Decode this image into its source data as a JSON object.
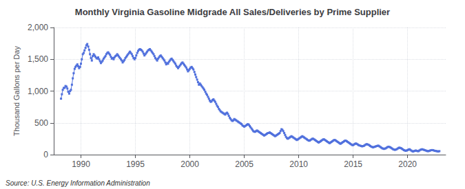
{
  "chart_data": {
    "type": "line",
    "title": "Monthly Virginia Gasoline Midgrade All Sales/Deliveries by Prime Supplier",
    "ylabel": "Thousand Gallons per Day",
    "annotations": [
      "Source: U.S. Energy Information Administration"
    ],
    "marker": "square",
    "grid": true,
    "xlim": [
      1987.5,
      2023.5
    ],
    "xticks": [
      1990,
      1995,
      2000,
      2005,
      2010,
      2015,
      2020
    ],
    "ylim": [
      0,
      2000
    ],
    "yticks": [
      0,
      500,
      {
        "value": 1000,
        "label": "1,000"
      },
      {
        "value": 1500,
        "label": "1,500"
      },
      {
        "value": 2000,
        "label": "2,000"
      }
    ],
    "x": [
      1988.17,
      1988.25,
      1988.33,
      1988.42,
      1988.5,
      1988.58,
      1988.67,
      1988.75,
      1988.83,
      1988.92,
      1989.0,
      1989.08,
      1989.17,
      1989.25,
      1989.33,
      1989.42,
      1989.5,
      1989.58,
      1989.67,
      1989.75,
      1989.83,
      1989.92,
      1990.0,
      1990.08,
      1990.17,
      1990.25,
      1990.33,
      1990.42,
      1990.5,
      1990.58,
      1990.67,
      1990.75,
      1990.83,
      1990.92,
      1991.0,
      1991.08,
      1991.17,
      1991.25,
      1991.33,
      1991.42,
      1991.5,
      1991.58,
      1991.67,
      1991.75,
      1991.83,
      1991.92,
      1992.0,
      1992.08,
      1992.17,
      1992.25,
      1992.33,
      1992.42,
      1992.5,
      1992.58,
      1992.67,
      1992.75,
      1992.83,
      1992.92,
      1993.0,
      1993.08,
      1993.17,
      1993.25,
      1993.33,
      1993.42,
      1993.5,
      1993.58,
      1993.67,
      1993.75,
      1993.83,
      1993.92,
      1994.0,
      1994.08,
      1994.17,
      1994.25,
      1994.33,
      1994.42,
      1994.5,
      1994.58,
      1994.67,
      1994.75,
      1994.83,
      1994.92,
      1995.0,
      1995.08,
      1995.17,
      1995.25,
      1995.33,
      1995.42,
      1995.5,
      1995.58,
      1995.67,
      1995.75,
      1995.83,
      1995.92,
      1996.0,
      1996.08,
      1996.17,
      1996.25,
      1996.33,
      1996.42,
      1996.5,
      1996.58,
      1996.67,
      1996.75,
      1996.83,
      1996.92,
      1997.0,
      1997.08,
      1997.17,
      1997.25,
      1997.33,
      1997.42,
      1997.5,
      1997.58,
      1997.67,
      1997.75,
      1997.83,
      1997.92,
      1998.0,
      1998.08,
      1998.17,
      1998.25,
      1998.33,
      1998.42,
      1998.5,
      1998.58,
      1998.67,
      1998.75,
      1998.83,
      1998.92,
      1999.0,
      1999.08,
      1999.17,
      1999.25,
      1999.33,
      1999.42,
      1999.5,
      1999.58,
      1999.67,
      1999.75,
      1999.83,
      1999.92,
      2000.0,
      2000.08,
      2000.17,
      2000.25,
      2000.33,
      2000.42,
      2000.5,
      2000.58,
      2000.67,
      2000.75,
      2000.83,
      2000.92,
      2001.0,
      2001.08,
      2001.17,
      2001.25,
      2001.33,
      2001.42,
      2001.5,
      2001.58,
      2001.67,
      2001.75,
      2001.83,
      2001.92,
      2002.0,
      2002.08,
      2002.17,
      2002.25,
      2002.33,
      2002.42,
      2002.5,
      2002.58,
      2002.67,
      2002.75,
      2002.83,
      2002.92,
      2003.0,
      2003.08,
      2003.17,
      2003.25,
      2003.33,
      2003.42,
      2003.5,
      2003.58,
      2003.67,
      2003.75,
      2003.83,
      2003.92,
      2004.0,
      2004.08,
      2004.17,
      2004.25,
      2004.33,
      2004.42,
      2004.5,
      2004.58,
      2004.67,
      2004.75,
      2004.83,
      2004.92,
      2005.0,
      2005.08,
      2005.17,
      2005.25,
      2005.33,
      2005.42,
      2005.5,
      2005.58,
      2005.67,
      2005.75,
      2005.83,
      2005.92,
      2006.0,
      2006.08,
      2006.17,
      2006.25,
      2006.33,
      2006.42,
      2006.5,
      2006.58,
      2006.67,
      2006.75,
      2006.83,
      2006.92,
      2007.0,
      2007.08,
      2007.17,
      2007.25,
      2007.33,
      2007.42,
      2007.5,
      2007.58,
      2007.67,
      2007.75,
      2007.83,
      2007.92,
      2008.0,
      2008.08,
      2008.17,
      2008.25,
      2008.33,
      2008.42,
      2008.5,
      2008.58,
      2008.67,
      2008.75,
      2008.83,
      2008.92,
      2009.0,
      2009.08,
      2009.17,
      2009.25,
      2009.33,
      2009.42,
      2009.5,
      2009.58,
      2009.67,
      2009.75,
      2009.83,
      2009.92,
      2010.0,
      2010.08,
      2010.17,
      2010.25,
      2010.33,
      2010.42,
      2010.5,
      2010.58,
      2010.67,
      2010.75,
      2010.83,
      2010.92,
      2011.0,
      2011.08,
      2011.17,
      2011.25,
      2011.33,
      2011.42,
      2011.5,
      2011.58,
      2011.67,
      2011.75,
      2011.83,
      2011.92,
      2012.0,
      2012.08,
      2012.17,
      2012.25,
      2012.33,
      2012.42,
      2012.5,
      2012.58,
      2012.67,
      2012.75,
      2012.83,
      2012.92,
      2013.0,
      2013.08,
      2013.17,
      2013.25,
      2013.33,
      2013.42,
      2013.5,
      2013.58,
      2013.67,
      2013.75,
      2013.83,
      2013.92,
      2014.0,
      2014.08,
      2014.17,
      2014.25,
      2014.33,
      2014.42,
      2014.5,
      2014.58,
      2014.67,
      2014.75,
      2014.83,
      2014.92,
      2015.0,
      2015.08,
      2015.17,
      2015.25,
      2015.33,
      2015.42,
      2015.5,
      2015.58,
      2015.67,
      2015.75,
      2015.83,
      2015.92,
      2016.0,
      2016.08,
      2016.17,
      2016.25,
      2016.33,
      2016.42,
      2016.5,
      2016.58,
      2016.67,
      2016.75,
      2016.83,
      2016.92,
      2017.0,
      2017.08,
      2017.17,
      2017.25,
      2017.33,
      2017.42,
      2017.5,
      2017.58,
      2017.67,
      2017.75,
      2017.83,
      2017.92,
      2018.0,
      2018.08,
      2018.17,
      2018.25,
      2018.33,
      2018.42,
      2018.5,
      2018.58,
      2018.67,
      2018.75,
      2018.83,
      2018.92,
      2019.0,
      2019.08,
      2019.17,
      2019.25,
      2019.33,
      2019.42,
      2019.5,
      2019.58,
      2019.67,
      2019.75,
      2019.83,
      2019.92,
      2020.0,
      2020.08,
      2020.17,
      2020.25,
      2020.33,
      2020.42,
      2020.5,
      2020.58,
      2020.67,
      2020.75,
      2020.83,
      2020.92,
      2021.0,
      2021.08,
      2021.17,
      2021.25,
      2021.33,
      2021.42,
      2021.5,
      2021.58,
      2021.67,
      2021.75,
      2021.83,
      2021.92,
      2022.0,
      2022.08,
      2022.17,
      2022.25,
      2022.33,
      2022.42,
      2022.5,
      2022.58,
      2022.67,
      2022.75,
      2022.83,
      2022.92
    ],
    "values": [
      880,
      950,
      1020,
      1050,
      1050,
      1080,
      1070,
      1040,
      990,
      960,
      1000,
      1020,
      1100,
      1200,
      1280,
      1350,
      1380,
      1400,
      1420,
      1390,
      1360,
      1380,
      1430,
      1500,
      1580,
      1600,
      1640,
      1680,
      1720,
      1740,
      1700,
      1650,
      1580,
      1520,
      1480,
      1550,
      1580,
      1560,
      1540,
      1520,
      1510,
      1530,
      1500,
      1470,
      1440,
      1460,
      1480,
      1510,
      1530,
      1550,
      1580,
      1600,
      1610,
      1590,
      1570,
      1540,
      1510,
      1520,
      1500,
      1530,
      1550,
      1560,
      1580,
      1560,
      1540,
      1520,
      1500,
      1480,
      1450,
      1470,
      1490,
      1520,
      1540,
      1560,
      1580,
      1600,
      1620,
      1600,
      1580,
      1550,
      1520,
      1500,
      1520,
      1560,
      1600,
      1630,
      1650,
      1660,
      1650,
      1640,
      1620,
      1590,
      1560,
      1580,
      1600,
      1620,
      1640,
      1650,
      1660,
      1640,
      1620,
      1600,
      1580,
      1550,
      1520,
      1500,
      1480,
      1510,
      1530,
      1550,
      1560,
      1540,
      1520,
      1500,
      1480,
      1450,
      1420,
      1440,
      1430,
      1460,
      1480,
      1500,
      1510,
      1490,
      1470,
      1450,
      1430,
      1400,
      1380,
      1360,
      1380,
      1400,
      1420,
      1440,
      1450,
      1430,
      1410,
      1390,
      1370,
      1340,
      1310,
      1330,
      1350,
      1370,
      1380,
      1360,
      1340,
      1300,
      1260,
      1220,
      1180,
      1140,
      1100,
      1120,
      1100,
      1080,
      1060,
      1040,
      1020,
      990,
      960,
      940,
      910,
      880,
      850,
      830,
      840,
      860,
      870,
      850,
      830,
      800,
      770,
      750,
      720,
      700,
      680,
      670,
      660,
      650,
      640,
      630,
      650,
      660,
      640,
      610,
      580,
      560,
      540,
      530,
      540,
      560,
      550,
      540,
      530,
      520,
      510,
      500,
      490,
      480,
      460,
      450,
      440,
      450,
      460,
      470,
      480,
      470,
      450,
      430,
      410,
      390,
      370,
      360,
      360,
      370,
      380,
      370,
      360,
      350,
      340,
      330,
      320,
      310,
      300,
      310,
      320,
      330,
      340,
      340,
      350,
      340,
      330,
      320,
      310,
      300,
      290,
      300,
      310,
      320,
      330,
      340,
      370,
      400,
      390,
      370,
      340,
      310,
      280,
      260,
      250,
      260,
      270,
      280,
      290,
      280,
      270,
      260,
      250,
      240,
      230,
      240,
      250,
      260,
      270,
      280,
      290,
      280,
      270,
      260,
      250,
      240,
      230,
      220,
      220,
      230,
      240,
      250,
      250,
      240,
      230,
      220,
      210,
      200,
      190,
      200,
      210,
      220,
      230,
      240,
      240,
      230,
      220,
      210,
      200,
      190,
      180,
      190,
      200,
      210,
      220,
      230,
      230,
      220,
      210,
      200,
      190,
      180,
      170,
      180,
      190,
      200,
      210,
      220,
      220,
      210,
      200,
      190,
      180,
      170,
      160,
      150,
      150,
      160,
      170,
      175,
      170,
      160,
      150,
      145,
      140,
      135,
      130,
      135,
      140,
      150,
      160,
      165,
      160,
      155,
      145,
      135,
      125,
      120,
      115,
      120,
      125,
      130,
      135,
      140,
      140,
      130,
      120,
      110,
      100,
      95,
      90,
      95,
      100,
      110,
      120,
      125,
      120,
      115,
      105,
      95,
      85,
      80,
      75,
      80,
      85,
      95,
      105,
      110,
      105,
      100,
      90,
      80,
      70,
      65,
      60,
      65,
      70,
      80,
      85,
      75,
      65,
      55,
      50,
      55,
      60,
      65,
      60,
      55,
      55,
      65,
      75,
      80,
      85,
      80,
      75,
      70,
      65,
      60,
      55,
      55,
      60,
      65,
      70,
      72,
      70,
      65,
      60,
      58,
      55,
      52,
      50,
      55
    ]
  }
}
